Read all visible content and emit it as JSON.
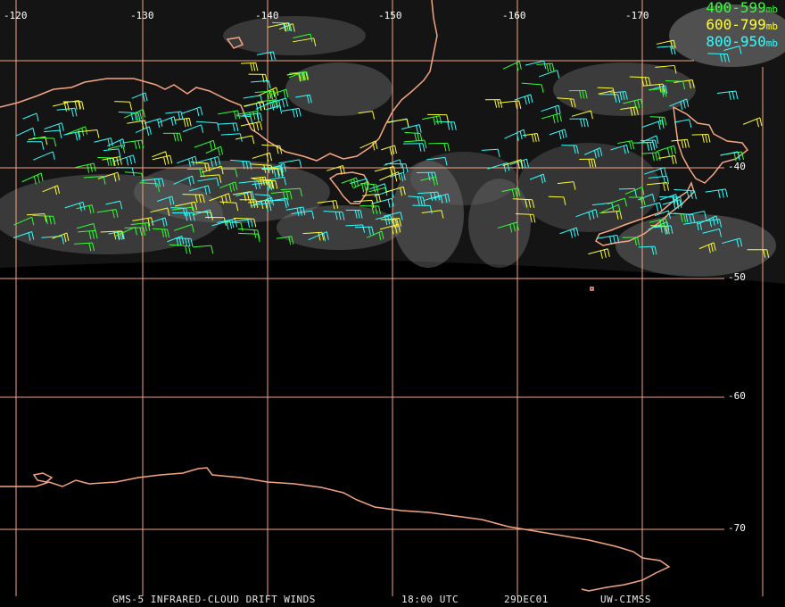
{
  "map": {
    "longitude_labels": [
      "-120",
      "-130",
      "-140",
      "-150",
      "-160",
      "-170"
    ],
    "latitude_labels": [
      "-40",
      "-50",
      "-60",
      "-70"
    ],
    "colors": {
      "graticule": "#f4a582",
      "coastline": "#f4a582",
      "background": "#000000"
    }
  },
  "legend": [
    {
      "range": "400-599",
      "unit": "mb",
      "color": "#33ff33"
    },
    {
      "range": "600-799",
      "unit": "mb",
      "color": "#ffff33"
    },
    {
      "range": "800-950",
      "unit": "mb",
      "color": "#33ffff"
    }
  ],
  "footer": {
    "product": "GMS-5 INFRARED-CLOUD DRIFT WINDS",
    "time": "18:00 UTC",
    "date": "29DEC01",
    "source": "UW-CIMSS"
  }
}
